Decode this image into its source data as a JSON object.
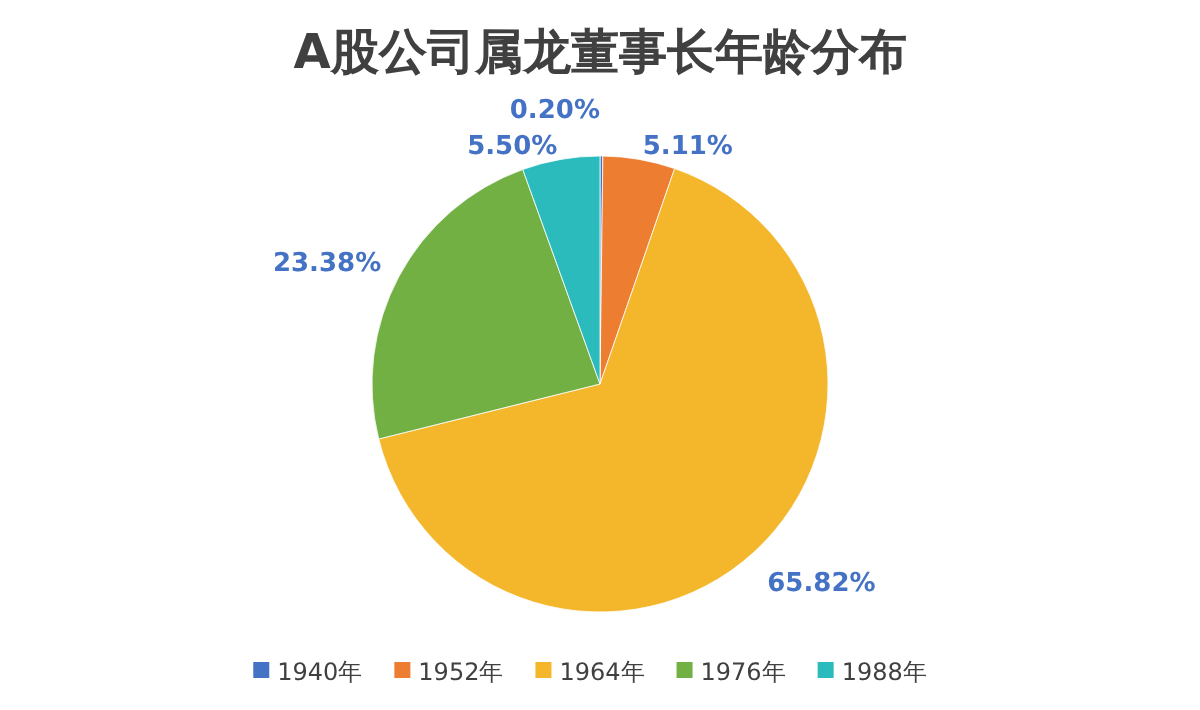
{
  "chart_data": {
    "type": "pie",
    "title": "A股公司属龙董事长年龄分布",
    "categories": [
      "1940年",
      "1952年",
      "1964年",
      "1976年",
      "1988年"
    ],
    "values": [
      0.2,
      5.11,
      65.82,
      23.38,
      5.5
    ],
    "value_labels": [
      "0.20%",
      "5.11%",
      "65.82%",
      "23.38%",
      "5.50%"
    ],
    "colors": [
      "#4472c4",
      "#ed7d31",
      "#f4b62a",
      "#72b043",
      "#2bbbbd"
    ],
    "legend": "bottom"
  }
}
